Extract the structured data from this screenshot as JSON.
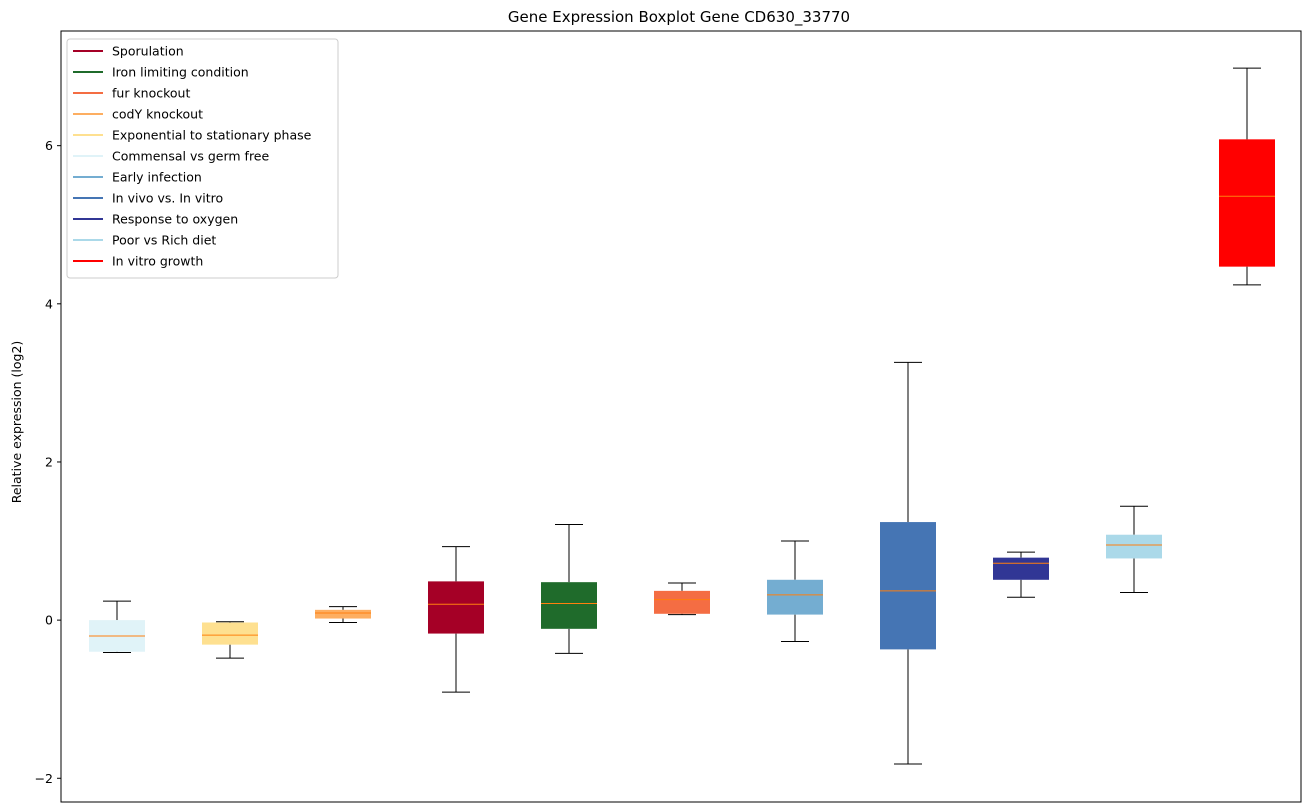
{
  "chart_data": {
    "type": "boxplot",
    "title": "Gene Expression Boxplot Gene CD630_33770",
    "xlabel": "",
    "ylabel": "Relative expression (log2)",
    "ylim": [
      -2.3,
      7.45
    ],
    "yticks": [
      -2,
      0,
      2,
      4,
      6
    ],
    "ytick_labels": [
      "−2",
      "0",
      "2",
      "4",
      "6"
    ],
    "median_color": "#ff7f0e",
    "legend": {
      "location": "top-left",
      "entries": [
        {
          "label": "Sporulation",
          "color": "#a50026"
        },
        {
          "label": "Iron limiting condition",
          "color": "#1f6b2b"
        },
        {
          "label": "fur knockout",
          "color": "#f46d43"
        },
        {
          "label": "codY knockout",
          "color": "#fdae61"
        },
        {
          "label": "Exponential to stationary phase",
          "color": "#fee090"
        },
        {
          "label": "Commensal vs germ free",
          "color": "#e0f3f8"
        },
        {
          "label": "Early infection",
          "color": "#74add1"
        },
        {
          "label": "In vivo vs. In vitro",
          "color": "#4575b4"
        },
        {
          "label": "Response to oxygen",
          "color": "#313695"
        },
        {
          "label": "Poor vs Rich diet",
          "color": "#abd9e9"
        },
        {
          "label": "In vitro growth",
          "color": "#ff0000"
        }
      ]
    },
    "boxes": [
      {
        "group": "Commensal vs germ free",
        "color": "#e0f3f8",
        "whislo": -0.41,
        "q1": -0.4,
        "median": -0.2,
        "q3": 0.0,
        "whishi": 0.24
      },
      {
        "group": "Exponential to stationary phase",
        "color": "#fee090",
        "whislo": -0.48,
        "q1": -0.31,
        "median": -0.19,
        "q3": -0.03,
        "whishi": -0.02
      },
      {
        "group": "codY knockout",
        "color": "#fdae61",
        "whislo": -0.03,
        "q1": 0.02,
        "median": 0.09,
        "q3": 0.13,
        "whishi": 0.17
      },
      {
        "group": "Sporulation",
        "color": "#a50026",
        "whislo": -0.91,
        "q1": -0.17,
        "median": 0.2,
        "q3": 0.49,
        "whishi": 0.93
      },
      {
        "group": "Iron limiting condition",
        "color": "#1f6b2b",
        "whislo": -0.42,
        "q1": -0.11,
        "median": 0.21,
        "q3": 0.48,
        "whishi": 1.21
      },
      {
        "group": "fur knockout",
        "color": "#f46d43",
        "whislo": 0.07,
        "q1": 0.08,
        "median": 0.26,
        "q3": 0.37,
        "whishi": 0.47
      },
      {
        "group": "Early infection",
        "color": "#74add1",
        "whislo": -0.27,
        "q1": 0.07,
        "median": 0.32,
        "q3": 0.51,
        "whishi": 1.0
      },
      {
        "group": "In vivo vs. In vitro",
        "color": "#4575b4",
        "whislo": -1.82,
        "q1": -0.37,
        "median": 0.37,
        "q3": 1.24,
        "whishi": 3.26
      },
      {
        "group": "Response to oxygen",
        "color": "#313695",
        "whislo": 0.29,
        "q1": 0.51,
        "median": 0.72,
        "q3": 0.79,
        "whishi": 0.86
      },
      {
        "group": "Poor vs Rich diet",
        "color": "#abd9e9",
        "whislo": 0.35,
        "q1": 0.78,
        "median": 0.95,
        "q3": 1.08,
        "whishi": 1.44
      },
      {
        "group": "In vitro growth",
        "color": "#ff0000",
        "whislo": 4.24,
        "q1": 4.47,
        "median": 5.36,
        "q3": 6.08,
        "whishi": 6.98
      }
    ]
  }
}
